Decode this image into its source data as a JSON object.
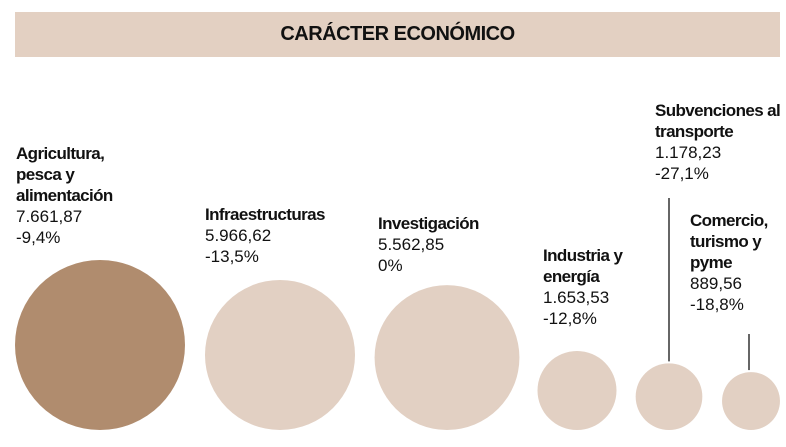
{
  "chart_data": {
    "type": "bubble",
    "title": "CARÁCTER ECONÓMICO",
    "categories": [
      "Agricultura, pesca y alimentación",
      "Infraestructuras",
      "Investigación",
      "Industria y energía",
      "Subvenciones al transporte",
      "Comercio, turismo y pyme"
    ],
    "values": [
      7661.87,
      5966.62,
      5562.85,
      1653.53,
      1178.23,
      889.56
    ],
    "value_labels": [
      "7.661,87",
      "5.966,62",
      "5.562,85",
      "1.653,53",
      "1.178,23",
      "889,56"
    ],
    "changes": [
      -9.4,
      -13.5,
      0,
      -12.8,
      -27.1,
      -18.8
    ],
    "change_labels": [
      "-9,4%",
      "-13,5%",
      "0%",
      "-12,8%",
      "-27,1%",
      "-18,8%"
    ],
    "colors": [
      "#b08c6e",
      "#e2d0c3",
      "#e2d0c3",
      "#e2d0c3",
      "#e2d0c3",
      "#e2d0c3"
    ]
  }
}
